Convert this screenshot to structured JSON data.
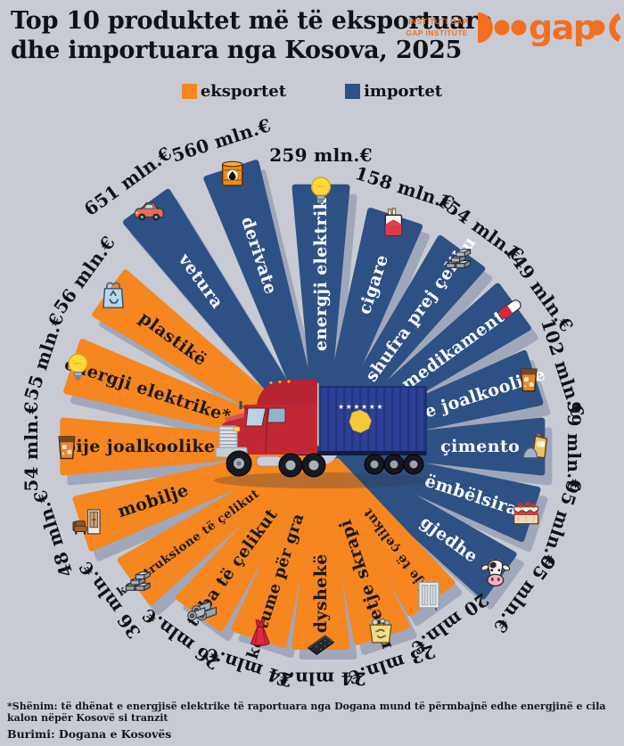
{
  "header": {
    "title_line1": "Top 10 produktet më të eksportuara",
    "title_line2": "dhe importuara nga Kosova, 2025",
    "brand": {
      "line1": "INSTITUTI GAP",
      "line2": "GAP INSTITUTE",
      "logo_word": "gap"
    }
  },
  "legend": {
    "exports": "eksportet",
    "imports": "importet"
  },
  "footer": {
    "note": "*Shënim: të dhënat e energjisë elektrike të raportuara nga Dogana mund të përmbajnë edhe energjinë e cila kalon nëpër Kosovë si tranzit",
    "source": "Burimi: Dogana e Kosovës"
  },
  "chart_data": {
    "type": "radial_bar",
    "title": "Top 10 produktet më të eksportuara dhe importuara nga Kosova, 2025",
    "unit": "mln.€",
    "legend_position": "top",
    "colors": {
      "exports": "#f6861f",
      "imports": "#2d5184",
      "background": "#c8cad4"
    },
    "series": [
      {
        "name": "importet",
        "color": "#2d5184",
        "items": [
          {
            "label": "vetura",
            "value": 651,
            "value_label": "651 mln.€",
            "icon": "car-icon"
          },
          {
            "label": "derivate",
            "value": 560,
            "value_label": "560 mln.€",
            "icon": "oil-barrel-icon"
          },
          {
            "label": "energji elektrike*",
            "value": 259,
            "value_label": "259 mln.€",
            "icon": "lightbulb-icon"
          },
          {
            "label": "cigare",
            "value": 158,
            "value_label": "158 mln.€",
            "icon": "cigarettes-icon"
          },
          {
            "label": "shufra prej çeliku",
            "value": 154,
            "value_label": "154 mln.€",
            "icon": "steel-bars-icon"
          },
          {
            "label": "medikamente",
            "value": 149,
            "value_label": "149 mln.€",
            "icon": "pill-icon"
          },
          {
            "label": "pije joalkoolike",
            "value": 102,
            "value_label": "102 mln.€",
            "icon": "soft-drink-icon"
          },
          {
            "label": "çimento",
            "value": 99,
            "value_label": "99 mln.€",
            "icon": "cement-icon"
          },
          {
            "label": "ëmbëlsira",
            "value": 95,
            "value_label": "95 mln.€",
            "icon": "cake-icon"
          },
          {
            "label": "gjedhe",
            "value": 95,
            "value_label": "95 mln.€",
            "icon": "cow-icon"
          }
        ]
      },
      {
        "name": "eksportet",
        "color": "#f6861f",
        "items": [
          {
            "label": "veshje të çelikut",
            "value": 20,
            "value_label": "20 mln.€",
            "icon": "steel-panel-icon"
          },
          {
            "label": "mbetje skrapi",
            "value": 23,
            "value_label": "23 mln.€",
            "icon": "scrap-waste-icon"
          },
          {
            "label": "dyshekë",
            "value": 24,
            "value_label": "24 mln.€",
            "icon": "mattress-icon"
          },
          {
            "label": "kostume për gra",
            "value": 24,
            "value_label": "24 mln.€",
            "icon": "dress-icon"
          },
          {
            "label": "tuba të çelikut",
            "value": 26,
            "value_label": "26 mln.€",
            "icon": "steel-pipes-icon"
          },
          {
            "label": "konstruksione të çelikut",
            "value": 36,
            "value_label": "36 mln.€",
            "icon": "steel-construction-icon"
          },
          {
            "label": "mobilje",
            "value": 48,
            "value_label": "48 mln.€",
            "icon": "furniture-icon"
          },
          {
            "label": "pije joalkoolike",
            "value": 54,
            "value_label": "54 mln.€",
            "icon": "soft-drink-icon"
          },
          {
            "label": "energji elektrike*",
            "value": 55,
            "value_label": "55 mln.€",
            "icon": "lightbulb-icon"
          },
          {
            "label": "plastikë",
            "value": 56,
            "value_label": "56 mln.€",
            "icon": "plastic-bag-icon"
          }
        ]
      }
    ]
  }
}
